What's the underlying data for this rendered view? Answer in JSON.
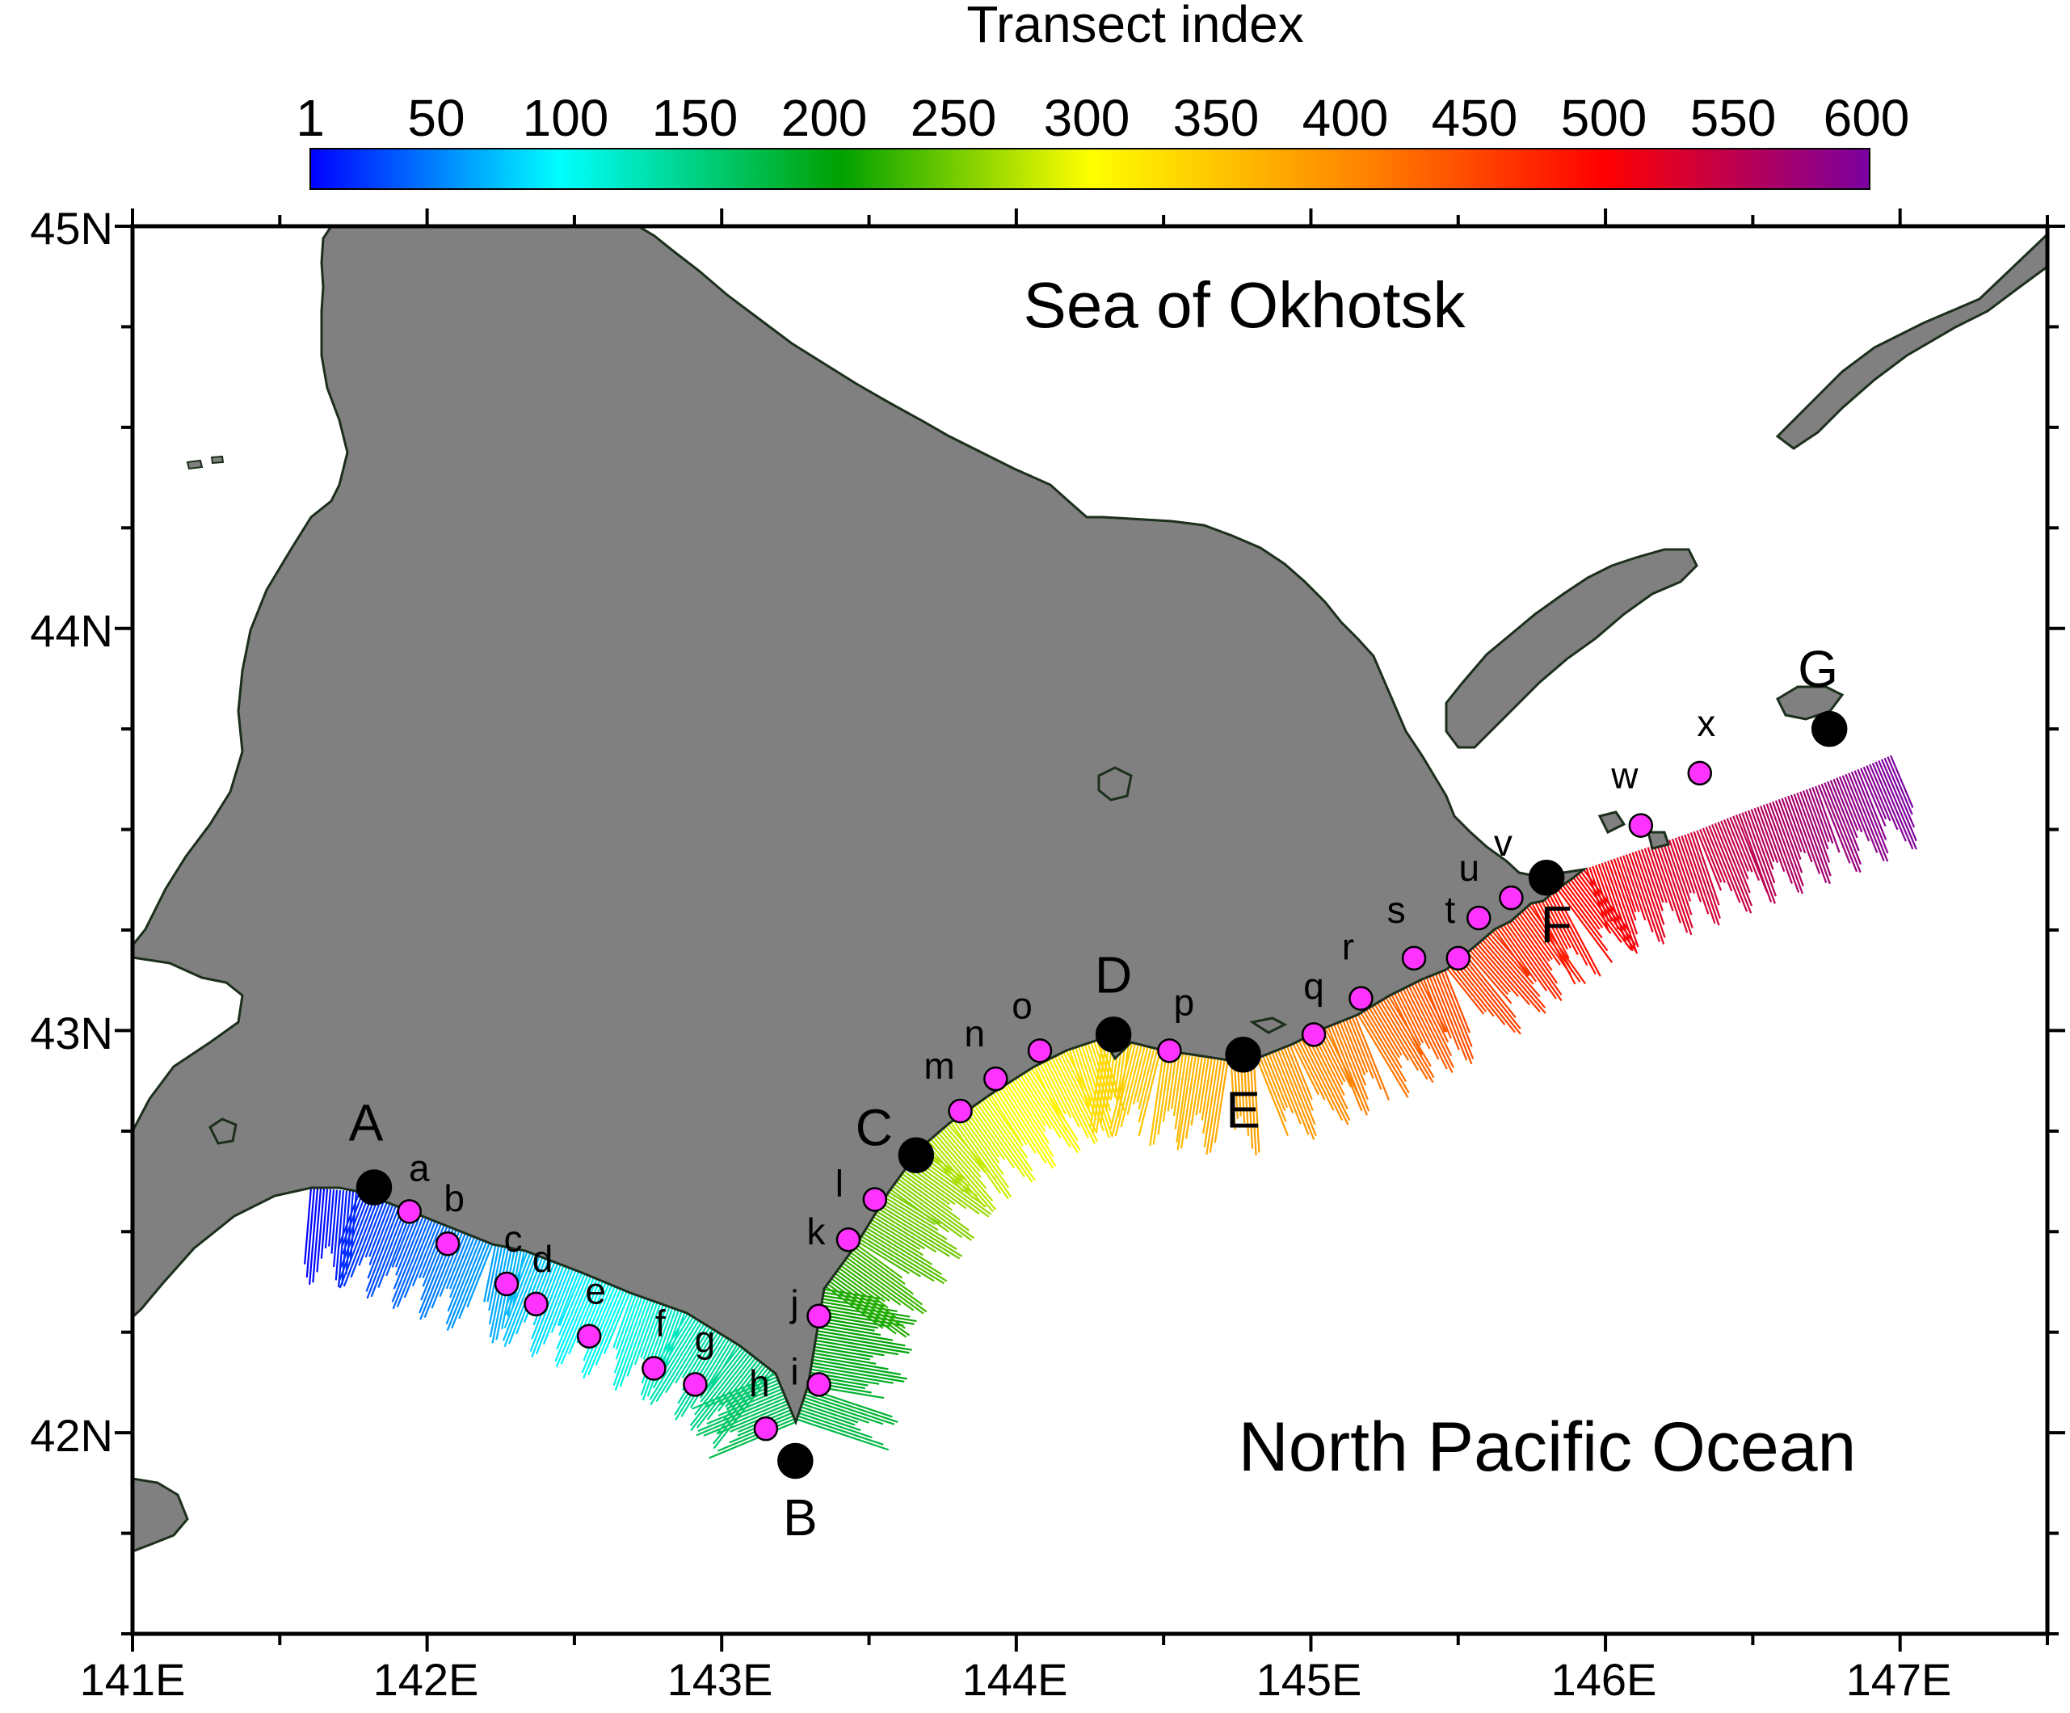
{
  "colorbar": {
    "title": "Transect index",
    "ticks": [
      "1",
      "50",
      "100",
      "150",
      "200",
      "250",
      "300",
      "350",
      "400",
      "450",
      "500",
      "550",
      "600"
    ],
    "range": [
      1,
      600
    ],
    "gradient_colors": [
      "#0000ff",
      "#00ffff",
      "#00a000",
      "#ffff00",
      "#ff8000",
      "#ff0000",
      "#7a00a0"
    ]
  },
  "axes": {
    "x_ticks": [
      "141E",
      "142E",
      "143E",
      "144E",
      "145E",
      "146E",
      "147E"
    ],
    "y_ticks": [
      "42N",
      "43N",
      "44N",
      "45N"
    ],
    "lon_range": [
      141,
      147.5
    ],
    "lat_range": [
      41.5,
      45
    ]
  },
  "labels": {
    "sea_okhotsk": "Sea of Okhotsk",
    "north_pacific": "North Pacific Ocean"
  },
  "colors": {
    "land": "#808080",
    "coast": "#1b2f1b",
    "major_marker": "#000000",
    "minor_marker": "#ff33ff"
  },
  "major_points": [
    {
      "label": "A",
      "lon": 141.82,
      "lat": 42.61
    },
    {
      "label": "B",
      "lon": 143.25,
      "lat": 41.93
    },
    {
      "label": "C",
      "lon": 143.66,
      "lat": 42.69
    },
    {
      "label": "D",
      "lon": 144.33,
      "lat": 42.99
    },
    {
      "label": "E",
      "lon": 144.77,
      "lat": 42.94
    },
    {
      "label": "F",
      "lon": 145.8,
      "lat": 43.38
    },
    {
      "label": "G",
      "lon": 146.76,
      "lat": 43.75
    }
  ],
  "minor_points": [
    {
      "label": "a",
      "lon": 141.94,
      "lat": 42.55
    },
    {
      "label": "b",
      "lon": 142.07,
      "lat": 42.47
    },
    {
      "label": "c",
      "lon": 142.27,
      "lat": 42.37
    },
    {
      "label": "d",
      "lon": 142.37,
      "lat": 42.32
    },
    {
      "label": "e",
      "lon": 142.55,
      "lat": 42.24
    },
    {
      "label": "f",
      "lon": 142.77,
      "lat": 42.16
    },
    {
      "label": "g",
      "lon": 142.91,
      "lat": 42.12
    },
    {
      "label": "h",
      "lon": 143.15,
      "lat": 42.01
    },
    {
      "label": "i",
      "lon": 143.33,
      "lat": 42.12
    },
    {
      "label": "j",
      "lon": 143.33,
      "lat": 42.29
    },
    {
      "label": "k",
      "lon": 143.43,
      "lat": 42.48
    },
    {
      "label": "l",
      "lon": 143.52,
      "lat": 42.58
    },
    {
      "label": "m",
      "lon": 143.81,
      "lat": 42.8
    },
    {
      "label": "n",
      "lon": 143.93,
      "lat": 42.88
    },
    {
      "label": "o",
      "lon": 144.08,
      "lat": 42.95
    },
    {
      "label": "p",
      "lon": 144.52,
      "lat": 42.95
    },
    {
      "label": "q",
      "lon": 145.01,
      "lat": 42.99
    },
    {
      "label": "r",
      "lon": 145.17,
      "lat": 43.08
    },
    {
      "label": "s",
      "lon": 145.35,
      "lat": 43.18
    },
    {
      "label": "t",
      "lon": 145.5,
      "lat": 43.18
    },
    {
      "label": "u",
      "lon": 145.57,
      "lat": 43.28
    },
    {
      "label": "v",
      "lon": 145.68,
      "lat": 43.33
    },
    {
      "label": "w",
      "lon": 146.12,
      "lat": 43.51
    },
    {
      "label": "x",
      "lon": 146.32,
      "lat": 43.64
    }
  ]
}
